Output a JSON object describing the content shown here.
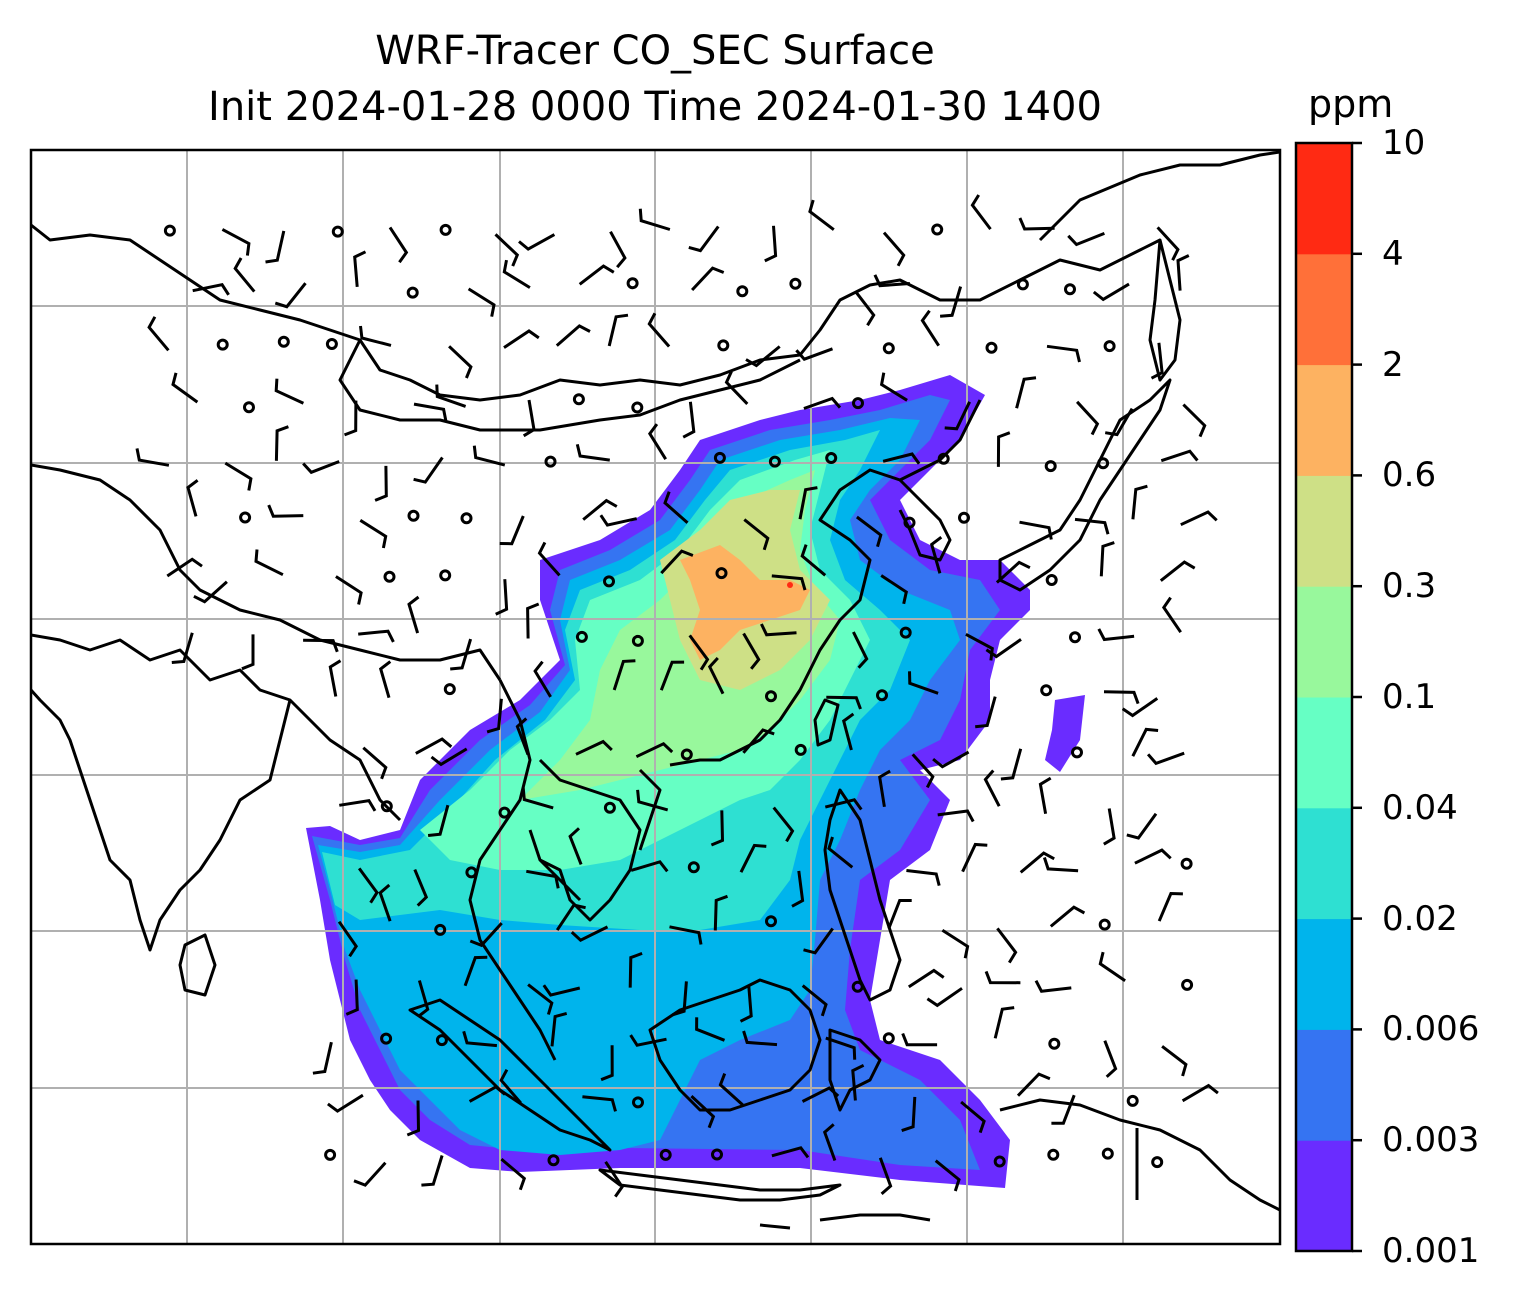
{
  "title": {
    "line1": "WRF-Tracer CO_SEC Surface",
    "line2": "Init 2024-01-28 0000 Time 2024-01-30 1400"
  },
  "colorbar": {
    "unit": "ppm",
    "levels": [
      "0.001",
      "0.003",
      "0.006",
      "0.02",
      "0.04",
      "0.1",
      "0.3",
      "0.6",
      "2",
      "4",
      "10"
    ],
    "colors": [
      "#6a2cff",
      "#3574f2",
      "#00b4ec",
      "#2ee0d2",
      "#66ffc4",
      "#98f89c",
      "#cee086",
      "#fdb261",
      "#ff7039",
      "#ff2a13"
    ]
  },
  "map": {
    "field": "CO_SEC",
    "level": "Surface",
    "overlays": [
      "coastlines",
      "country-borders",
      "gridlines",
      "wind-barbs"
    ]
  }
}
